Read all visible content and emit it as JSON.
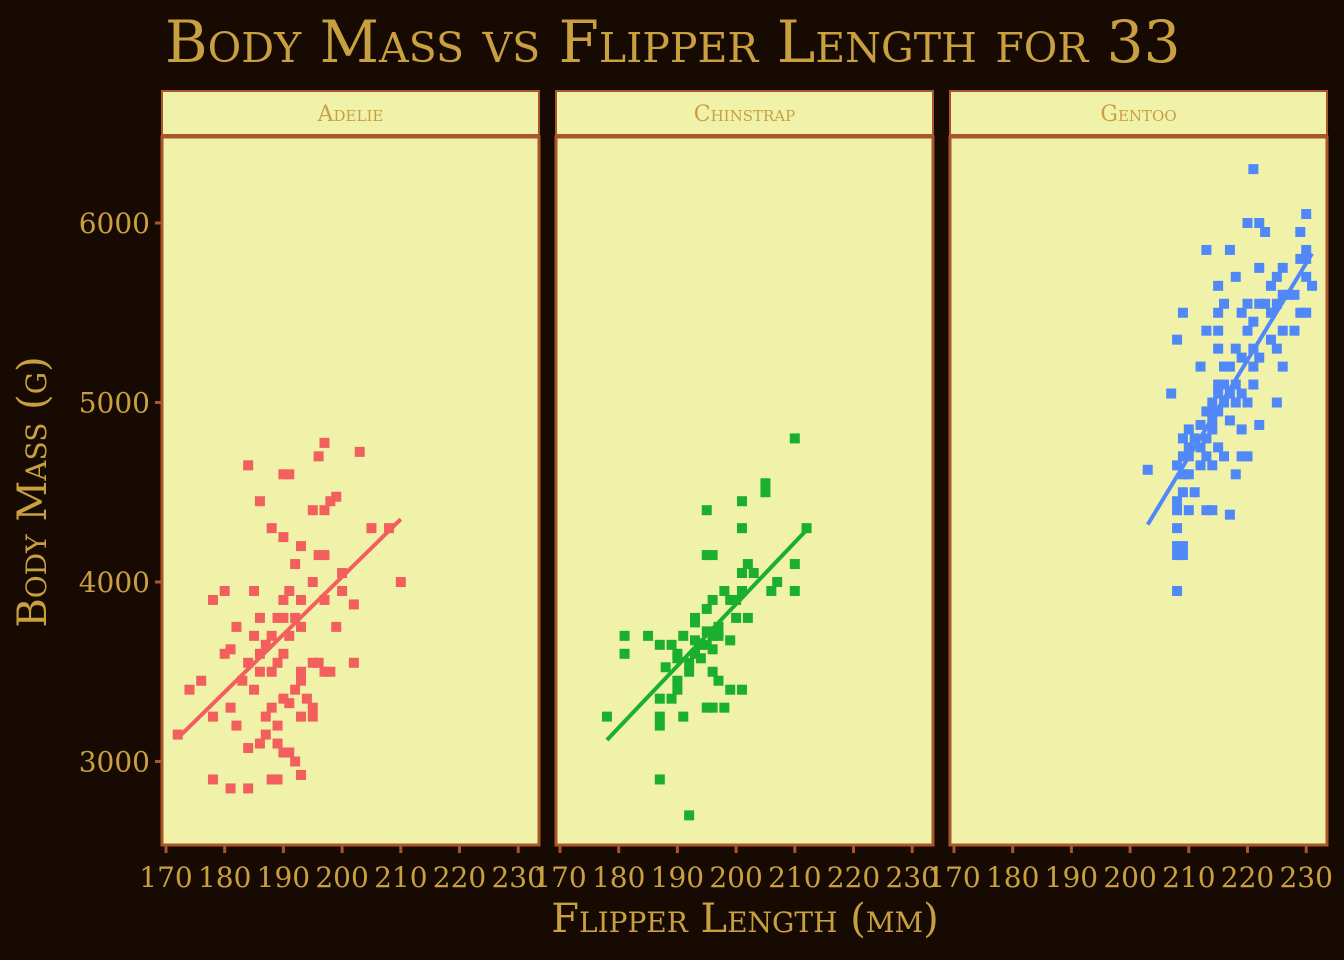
{
  "chart_data": {
    "type": "scatter",
    "title": "Body Mass vs Flipper Length for 33",
    "xlabel": "Flipper Length (mm)",
    "ylabel": "Body Mass (g)",
    "xlim": [
      168,
      233
    ],
    "ylim": [
      2550,
      6450
    ],
    "xticks": [
      170,
      180,
      190,
      200,
      210,
      220,
      230
    ],
    "yticks": [
      3000,
      4000,
      5000,
      6000
    ],
    "grid": false,
    "legend": "none",
    "colors": {
      "background": "#170a02",
      "panel": "#f0f2aa",
      "border": "#a9572a",
      "text": "#c9a040"
    },
    "facets": [
      {
        "name": "Adelie",
        "color": "#f25f5c",
        "fit": [
          [
            172,
            3130
          ],
          [
            210,
            4350
          ]
        ],
        "points": [
          [
            172,
            3150
          ],
          [
            174,
            3400
          ],
          [
            176,
            3450
          ],
          [
            178,
            2900
          ],
          [
            178,
            3250
          ],
          [
            178,
            3900
          ],
          [
            180,
            3600
          ],
          [
            180,
            3950
          ],
          [
            181,
            2850
          ],
          [
            181,
            3300
          ],
          [
            181,
            3625
          ],
          [
            182,
            3200
          ],
          [
            182,
            3750
          ],
          [
            183,
            3450
          ],
          [
            184,
            3550
          ],
          [
            184,
            3075
          ],
          [
            184,
            2850
          ],
          [
            184,
            4650
          ],
          [
            185,
            3400
          ],
          [
            185,
            3700
          ],
          [
            185,
            3950
          ],
          [
            186,
            3100
          ],
          [
            186,
            3500
          ],
          [
            186,
            3800
          ],
          [
            186,
            4450
          ],
          [
            187,
            3150
          ],
          [
            187,
            3250
          ],
          [
            187,
            3650
          ],
          [
            188,
            2900
          ],
          [
            188,
            3300
          ],
          [
            188,
            3500
          ],
          [
            188,
            4300
          ],
          [
            189,
            2900
          ],
          [
            189,
            3200
          ],
          [
            189,
            3550
          ],
          [
            189,
            3800
          ],
          [
            190,
            3050
          ],
          [
            190,
            3350
          ],
          [
            190,
            3600
          ],
          [
            190,
            3900
          ],
          [
            190,
            4250
          ],
          [
            190,
            4600
          ],
          [
            191,
            3050
          ],
          [
            191,
            3700
          ],
          [
            191,
            3950
          ],
          [
            191,
            4600
          ],
          [
            192,
            3000
          ],
          [
            192,
            3400
          ],
          [
            192,
            3800
          ],
          [
            192,
            4100
          ],
          [
            193,
            2925
          ],
          [
            193,
            3250
          ],
          [
            193,
            3450
          ],
          [
            193,
            3750
          ],
          [
            193,
            4200
          ],
          [
            194,
            3350
          ],
          [
            195,
            3250
          ],
          [
            195,
            3550
          ],
          [
            195,
            4000
          ],
          [
            195,
            4400
          ],
          [
            196,
            3550
          ],
          [
            196,
            4150
          ],
          [
            196,
            4700
          ],
          [
            197,
            3500
          ],
          [
            197,
            3900
          ],
          [
            197,
            4400
          ],
          [
            197,
            4775
          ],
          [
            198,
            3500
          ],
          [
            198,
            4450
          ],
          [
            199,
            3750
          ],
          [
            199,
            4475
          ],
          [
            200,
            3950
          ],
          [
            200,
            4050
          ],
          [
            202,
            3550
          ],
          [
            202,
            3875
          ],
          [
            203,
            4725
          ],
          [
            205,
            4300
          ],
          [
            208,
            4300
          ],
          [
            210,
            4000
          ],
          [
            191,
            3325
          ],
          [
            186,
            3600
          ],
          [
            188,
            3700
          ],
          [
            193,
            3500
          ],
          [
            195,
            3300
          ],
          [
            190,
            3800
          ],
          [
            189,
            3100
          ],
          [
            193,
            3900
          ],
          [
            197,
            4150
          ]
        ]
      },
      {
        "name": "Chinstrap",
        "color": "#1aaf2d",
        "fit": [
          [
            178,
            3120
          ],
          [
            212,
            4290
          ]
        ],
        "points": [
          [
            178,
            3250
          ],
          [
            181,
            3600
          ],
          [
            181,
            3700
          ],
          [
            185,
            3700
          ],
          [
            187,
            2900
          ],
          [
            187,
            3200
          ],
          [
            187,
            3250
          ],
          [
            187,
            3350
          ],
          [
            187,
            3650
          ],
          [
            188,
            3525
          ],
          [
            189,
            3650
          ],
          [
            190,
            3400
          ],
          [
            190,
            3450
          ],
          [
            190,
            3600
          ],
          [
            191,
            3250
          ],
          [
            191,
            3700
          ],
          [
            192,
            2700
          ],
          [
            192,
            3500
          ],
          [
            193,
            3600
          ],
          [
            193,
            3800
          ],
          [
            193,
            3775
          ],
          [
            194,
            3575
          ],
          [
            195,
            3300
          ],
          [
            195,
            3650
          ],
          [
            195,
            3725
          ],
          [
            195,
            3850
          ],
          [
            195,
            4150
          ],
          [
            195,
            4400
          ],
          [
            196,
            3300
          ],
          [
            196,
            3500
          ],
          [
            196,
            3700
          ],
          [
            196,
            3900
          ],
          [
            196,
            4150
          ],
          [
            197,
            3450
          ],
          [
            197,
            3700
          ],
          [
            198,
            3300
          ],
          [
            198,
            3950
          ],
          [
            199,
            3900
          ],
          [
            199,
            3400
          ],
          [
            200,
            3800
          ],
          [
            201,
            3400
          ],
          [
            201,
            3950
          ],
          [
            201,
            4300
          ],
          [
            201,
            4450
          ],
          [
            201,
            4050
          ],
          [
            202,
            4100
          ],
          [
            203,
            4050
          ],
          [
            205,
            4550
          ],
          [
            205,
            4500
          ],
          [
            206,
            3950
          ],
          [
            207,
            4000
          ],
          [
            210,
            3950
          ],
          [
            210,
            4100
          ],
          [
            210,
            4800
          ],
          [
            212,
            4300
          ],
          [
            193,
            3675
          ],
          [
            194,
            3650
          ],
          [
            197,
            3750
          ],
          [
            199,
            3675
          ],
          [
            192,
            3550
          ],
          [
            190,
            3575
          ],
          [
            196,
            3625
          ],
          [
            202,
            3800
          ],
          [
            200,
            3900
          ],
          [
            189,
            3350
          ]
        ]
      },
      {
        "name": "Gentoo",
        "color": "#5088fa",
        "fit": [
          [
            203,
            4320
          ],
          [
            231,
            5830
          ]
        ],
        "points": [
          [
            203,
            4625
          ],
          [
            207,
            5050
          ],
          [
            208,
            3950
          ],
          [
            208,
            4150
          ],
          [
            208,
            4200
          ],
          [
            208,
            4300
          ],
          [
            208,
            4400
          ],
          [
            208,
            4450
          ],
          [
            208,
            4650
          ],
          [
            208,
            5350
          ],
          [
            209,
            4200
          ],
          [
            209,
            4150
          ],
          [
            209,
            4500
          ],
          [
            209,
            4600
          ],
          [
            209,
            4700
          ],
          [
            209,
            4800
          ],
          [
            209,
            5500
          ],
          [
            210,
            4400
          ],
          [
            210,
            4700
          ],
          [
            210,
            4750
          ],
          [
            210,
            4850
          ],
          [
            211,
            4500
          ],
          [
            211,
            4800
          ],
          [
            212,
            4875
          ],
          [
            212,
            5200
          ],
          [
            212,
            4650
          ],
          [
            213,
            4950
          ],
          [
            213,
            4400
          ],
          [
            213,
            4700
          ],
          [
            213,
            5400
          ],
          [
            213,
            5850
          ],
          [
            214,
            4400
          ],
          [
            214,
            4650
          ],
          [
            214,
            4850
          ],
          [
            214,
            4900
          ],
          [
            214,
            5000
          ],
          [
            215,
            4750
          ],
          [
            215,
            4950
          ],
          [
            215,
            5050
          ],
          [
            215,
            5100
          ],
          [
            215,
            5300
          ],
          [
            215,
            5400
          ],
          [
            215,
            5500
          ],
          [
            215,
            5650
          ],
          [
            216,
            4700
          ],
          [
            216,
            5000
          ],
          [
            216,
            5200
          ],
          [
            216,
            5550
          ],
          [
            217,
            4375
          ],
          [
            217,
            4900
          ],
          [
            217,
            5850
          ],
          [
            217,
            5200
          ],
          [
            218,
            4600
          ],
          [
            218,
            5300
          ],
          [
            218,
            5700
          ],
          [
            218,
            5100
          ],
          [
            219,
            4700
          ],
          [
            219,
            4850
          ],
          [
            219,
            5250
          ],
          [
            219,
            5500
          ],
          [
            220,
            4700
          ],
          [
            220,
            5000
          ],
          [
            220,
            5400
          ],
          [
            220,
            5550
          ],
          [
            220,
            6000
          ],
          [
            221,
            5100
          ],
          [
            221,
            5450
          ],
          [
            221,
            5300
          ],
          [
            221,
            6300
          ],
          [
            222,
            4875
          ],
          [
            222,
            5250
          ],
          [
            222,
            5550
          ],
          [
            222,
            5750
          ],
          [
            222,
            6000
          ],
          [
            223,
            5950
          ],
          [
            223,
            5550
          ],
          [
            224,
            5350
          ],
          [
            224,
            5650
          ],
          [
            225,
            5000
          ],
          [
            225,
            5550
          ],
          [
            225,
            5700
          ],
          [
            225,
            5300
          ],
          [
            226,
            5200
          ],
          [
            226,
            5400
          ],
          [
            226,
            5600
          ],
          [
            228,
            5400
          ],
          [
            228,
            5600
          ],
          [
            229,
            5500
          ],
          [
            229,
            5800
          ],
          [
            229,
            5950
          ],
          [
            230,
            5500
          ],
          [
            230,
            5700
          ],
          [
            230,
            5800
          ],
          [
            230,
            5850
          ],
          [
            230,
            6050
          ],
          [
            231,
            5650
          ],
          [
            214,
            4950
          ],
          [
            216,
            5100
          ],
          [
            217,
            5050
          ],
          [
            219,
            5050
          ],
          [
            212,
            4750
          ],
          [
            210,
            4600
          ],
          [
            213,
            4800
          ],
          [
            218,
            5000
          ],
          [
            221,
            5200
          ],
          [
            224,
            5500
          ],
          [
            226,
            5750
          ],
          [
            227,
            5600
          ]
        ]
      }
    ]
  }
}
